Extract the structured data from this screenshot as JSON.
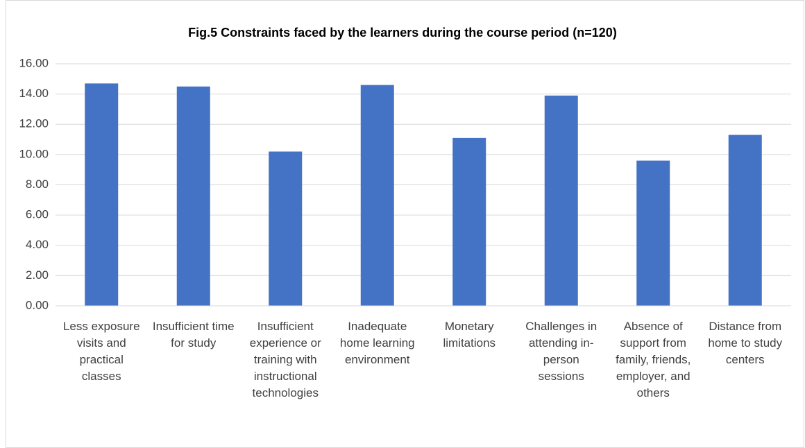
{
  "chart_data": {
    "type": "bar",
    "title": "Fig.5 Constraints faced by the learners during the course period (n=120)",
    "categories": [
      "Less exposure visits and practical classes",
      "Insufficient time for study",
      "Insufficient experience or training with instructional technologies",
      "Inadequate home learning environment",
      "Monetary limitations",
      "Challenges in attending in-person sessions",
      "Absence of support from family, friends, employer, and others",
      "Distance from home to study centers"
    ],
    "values": [
      14.7,
      14.5,
      10.2,
      14.6,
      11.1,
      13.9,
      9.6,
      11.3
    ],
    "color": "#4472c4",
    "ylim": [
      0,
      16
    ],
    "yticks": [
      {
        "value": 0,
        "label": "0.00"
      },
      {
        "value": 2,
        "label": "2.00"
      },
      {
        "value": 4,
        "label": "4.00"
      },
      {
        "value": 6,
        "label": "6.00"
      },
      {
        "value": 8,
        "label": "8.00"
      },
      {
        "value": 10,
        "label": "10.00"
      },
      {
        "value": 12,
        "label": "12.00"
      },
      {
        "value": 14,
        "label": "14.00"
      },
      {
        "value": 16,
        "label": "16.00"
      }
    ],
    "grid": true
  }
}
